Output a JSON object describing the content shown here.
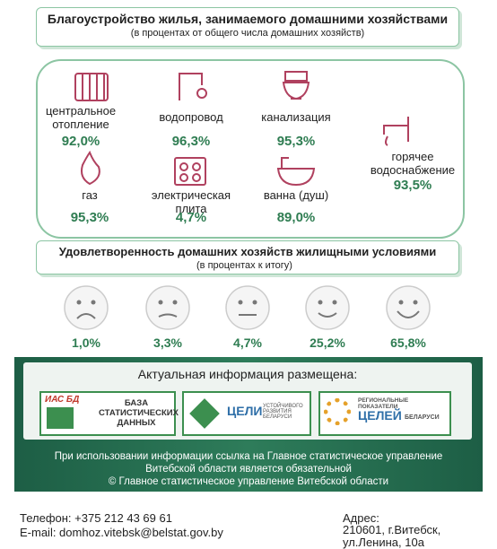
{
  "housing": {
    "title": "Благоустройство жилья, занимаемого домашними хозяйствами",
    "subtitle": "(в процентах от общего числа домашних хозяйств)",
    "items": [
      {
        "label": "центральное отопление",
        "value": "92,0%"
      },
      {
        "label": "водопровод",
        "value": "96,3%"
      },
      {
        "label": "канализация",
        "value": "95,3%"
      },
      {
        "label": "газ",
        "value": "95,3%"
      },
      {
        "label": "электрическая плита",
        "value": "4,7%"
      },
      {
        "label": "ванна (душ)",
        "value": "89,0%"
      },
      {
        "label": "горячее водоснабжение",
        "value": "93,5%"
      }
    ]
  },
  "satisfaction": {
    "title": "Удовлетворенность домашних хозяйств жилищными условиями",
    "subtitle": "(в процентах к итогу)",
    "values": [
      "1,0%",
      "3,3%",
      "4,7%",
      "25,2%",
      "65,8%"
    ]
  },
  "info": {
    "heading": "Актуальная информация размещена:",
    "logo1_tag": "ИАС БД",
    "logo1_text": "БАЗА СТАТИСТИЧЕСКИХ ДАННЫХ",
    "logo2_big": "ЦЕЛИ",
    "logo2_small": "УСТОЙЧИВОГО РАЗВИТИЯ БЕЛАРУСИ",
    "logo3_top": "РЕГИОНАЛЬНЫЕ ПОКАЗАТЕЛИ",
    "logo3_big": "ЦЕЛЕЙ",
    "logo3_small": "БЕЛАРУСИ",
    "notice": "При использовании информации ссылка на Главное статистическое управление Витебской области является обязательной",
    "copyright": "© Главное статистическое управление Витебской области"
  },
  "contacts": {
    "phone": "Телефон: +375 212 43 69 61",
    "email": "E-mail: domhoz.vitebsk@belstat.gov.by",
    "address_label": "Адрес:",
    "address": "210601, г.Витебск, ул.Ленина, 10а"
  }
}
